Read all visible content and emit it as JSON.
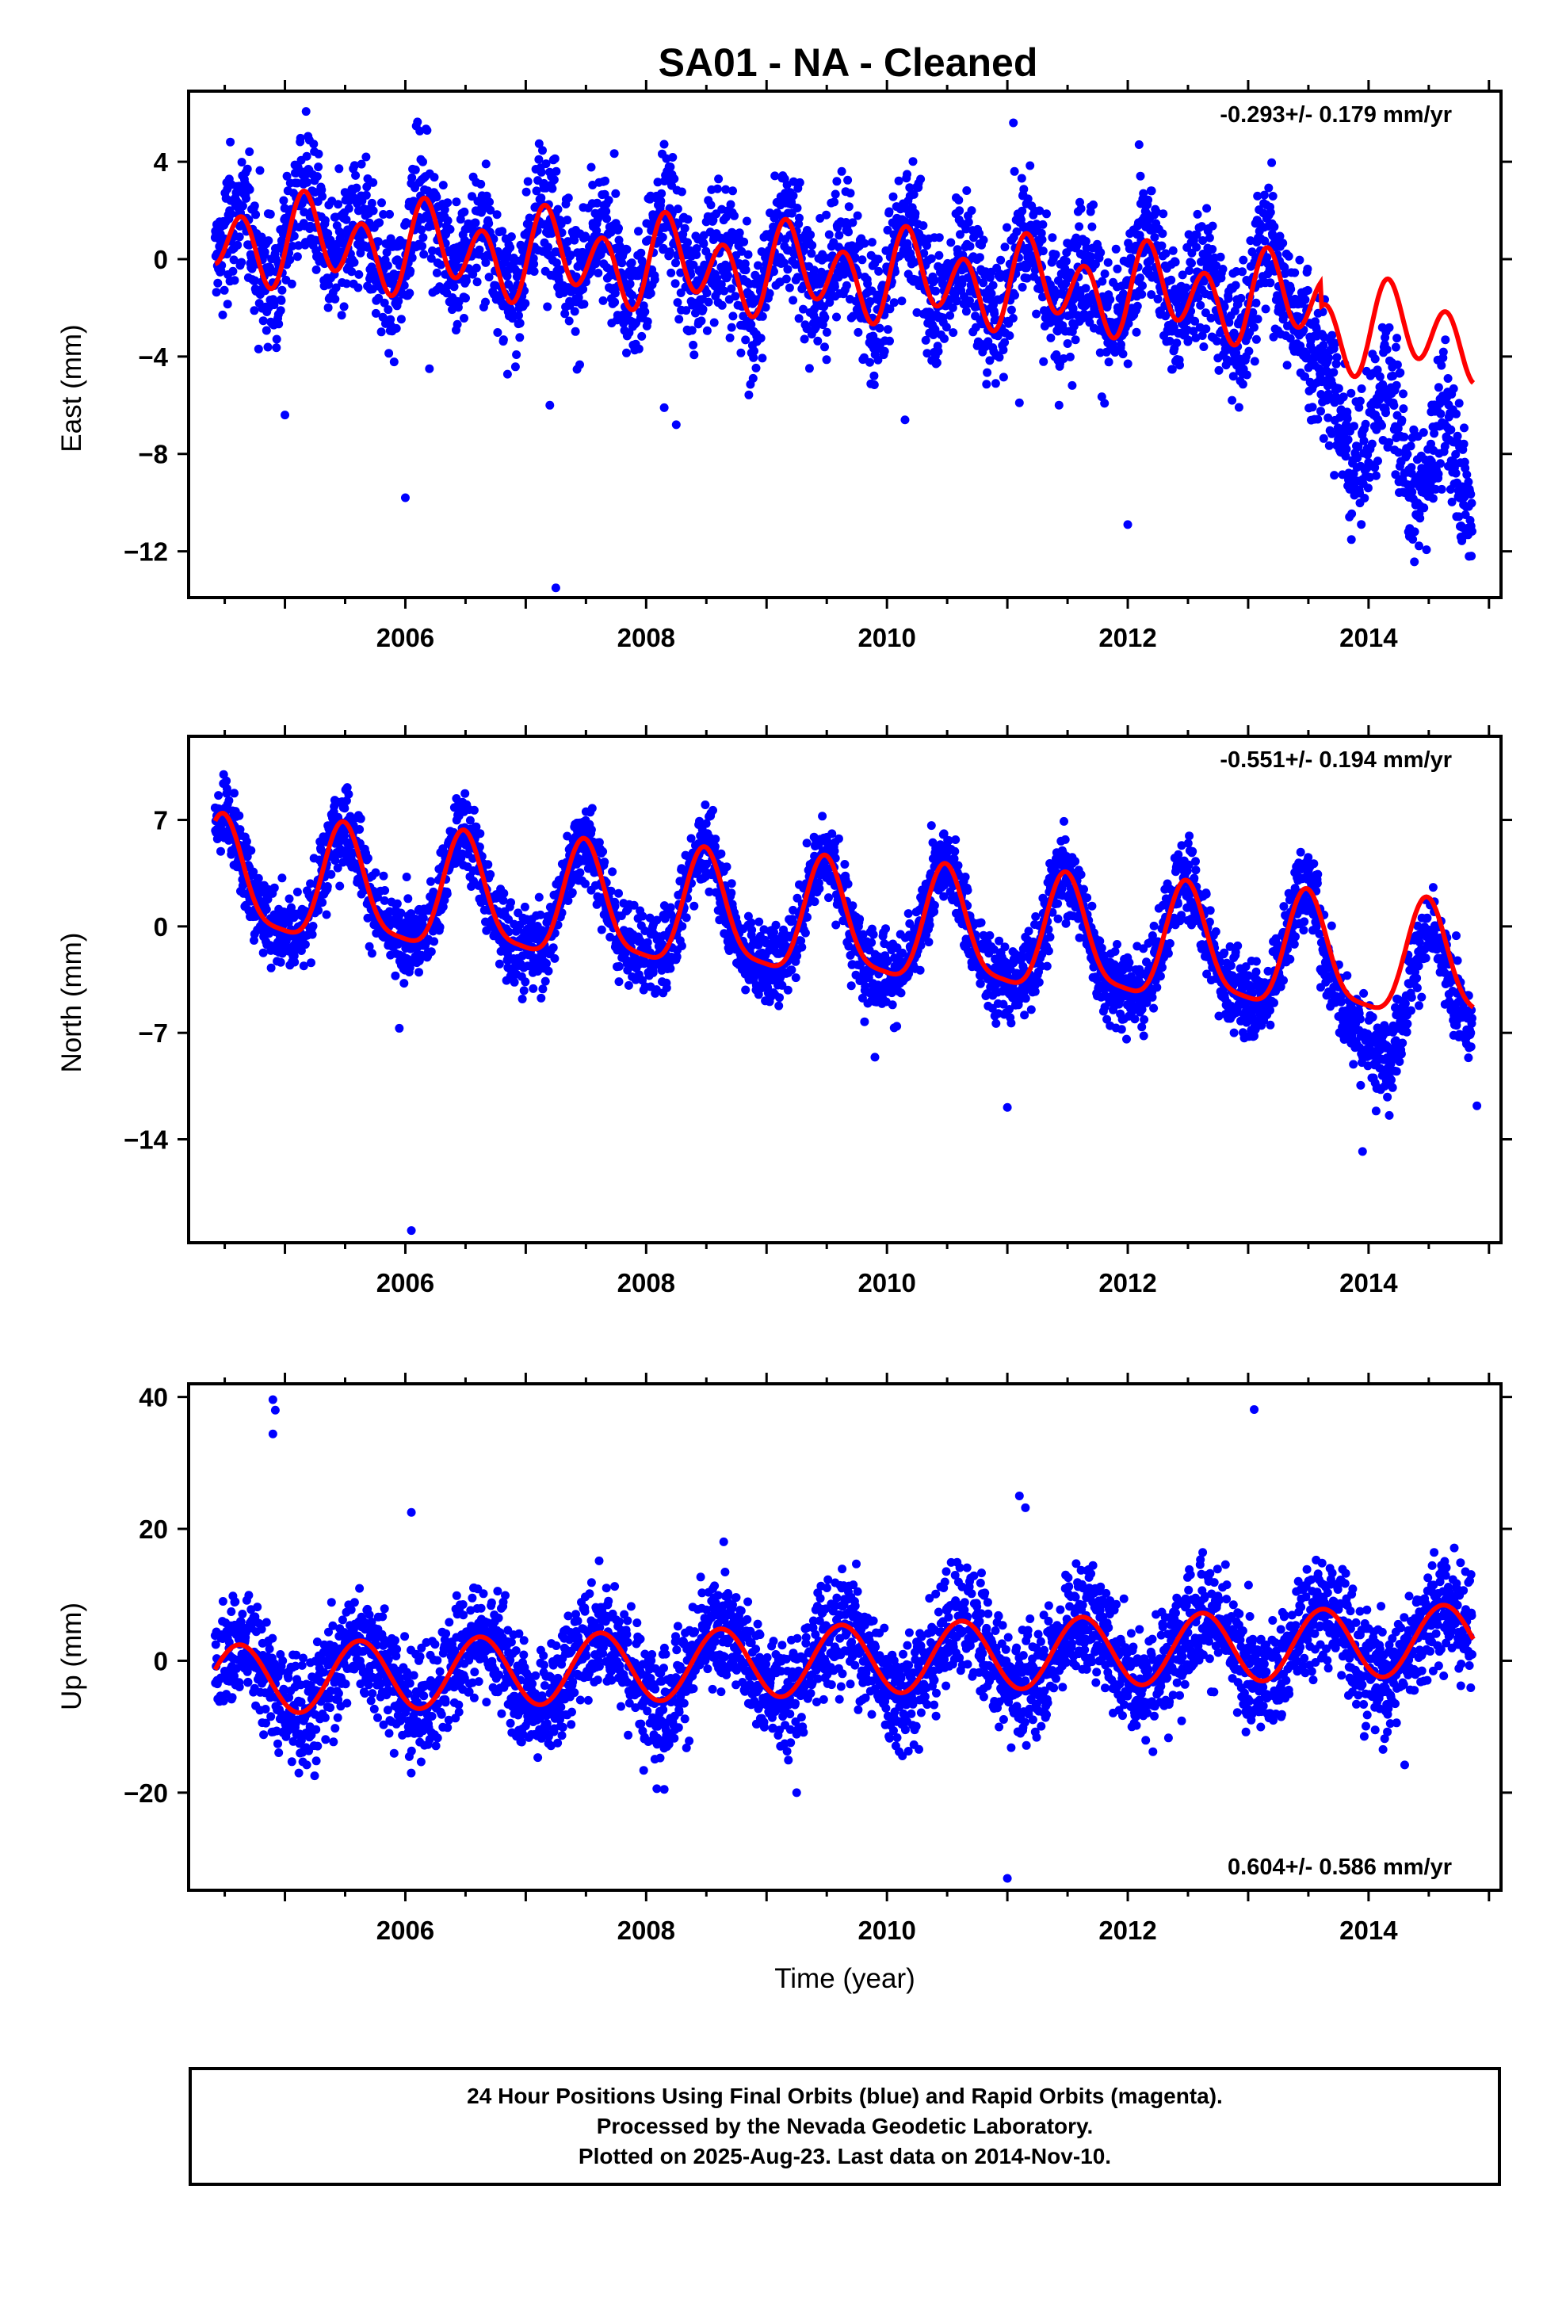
{
  "page": {
    "title": "SA01  - NA - Cleaned"
  },
  "colors": {
    "observations": "#0000ff",
    "model": "#ff0000",
    "frame": "#000000"
  },
  "chart_data": [
    {
      "type": "scatter",
      "panel": "east",
      "ylabel": "East (mm)",
      "xlabel": "",
      "xlim": [
        2004.2,
        2015.1
      ],
      "ylim": [
        -13.9,
        6.9
      ],
      "xticks": [
        2006,
        2008,
        2010,
        2012,
        2014
      ],
      "yticks": [
        4,
        0,
        -4,
        -8,
        -12
      ],
      "rate_label": "-0.293+/- 0.179 mm/yr",
      "series": [
        {
          "name": "24 Hour Positions (Final Orbits)",
          "style": "points"
        },
        {
          "name": "Model fit",
          "style": "line"
        }
      ],
      "outliers": [
        [
          2005.0,
          -6.4
        ],
        [
          2006.0,
          -9.8
        ],
        [
          2007.2,
          -6.0
        ],
        [
          2007.25,
          -13.5
        ],
        [
          2008.15,
          -6.1
        ],
        [
          2008.25,
          -6.8
        ],
        [
          2010.15,
          -6.6
        ],
        [
          2011.05,
          5.6
        ],
        [
          2011.1,
          -5.9
        ],
        [
          2012.0,
          -10.9
        ],
        [
          2006.2,
          -4.5
        ]
      ]
    },
    {
      "type": "scatter",
      "panel": "north",
      "ylabel": "North (mm)",
      "xlabel": "",
      "xlim": [
        2004.2,
        2015.1
      ],
      "ylim": [
        -20.8,
        12.5
      ],
      "xticks": [
        2006,
        2008,
        2010,
        2012,
        2014
      ],
      "yticks": [
        7,
        0,
        -7,
        -14
      ],
      "rate_label": "-0.551+/- 0.194 mm/yr",
      "series": [
        {
          "name": "24 Hour Positions (Final Orbits)",
          "style": "points"
        },
        {
          "name": "Model fit",
          "style": "line"
        }
      ],
      "outliers": [
        [
          2006.05,
          -20.0
        ],
        [
          2005.95,
          -6.7
        ],
        [
          2011.0,
          -11.9
        ],
        [
          2009.9,
          -8.6
        ],
        [
          2013.95,
          -14.8
        ],
        [
          2014.9,
          -11.8
        ]
      ]
    },
    {
      "type": "scatter",
      "panel": "up",
      "ylabel": "Up (mm)",
      "xlabel": "Time (year)",
      "xlim": [
        2004.2,
        2015.1
      ],
      "ylim": [
        -34.8,
        42.0
      ],
      "xticks": [
        2006,
        2008,
        2010,
        2012,
        2014
      ],
      "yticks": [
        40,
        20,
        0,
        -20
      ],
      "rate_label": "0.604+/- 0.586 mm/yr",
      "series": [
        {
          "name": "24 Hour Positions (Final Orbits)",
          "style": "points"
        },
        {
          "name": "Model fit",
          "style": "line"
        }
      ],
      "outliers": [
        [
          2004.9,
          39.6
        ],
        [
          2004.92,
          38.0
        ],
        [
          2004.9,
          34.4
        ],
        [
          2006.05,
          22.5
        ],
        [
          2011.1,
          25.0
        ],
        [
          2011.15,
          23.2
        ],
        [
          2013.05,
          38.1
        ],
        [
          2011.0,
          -33.0
        ],
        [
          2008.15,
          -19.5
        ],
        [
          2009.25,
          -20.0
        ],
        [
          2014.3,
          -15.8
        ]
      ]
    }
  ],
  "footer": {
    "line1": "24 Hour Positions Using Final Orbits (blue) and Rapid Orbits (magenta).",
    "line2": "Processed by the Nevada Geodetic Laboratory.",
    "line3": "Plotted on 2025-Aug-23. Last data on 2014-Nov-10."
  }
}
